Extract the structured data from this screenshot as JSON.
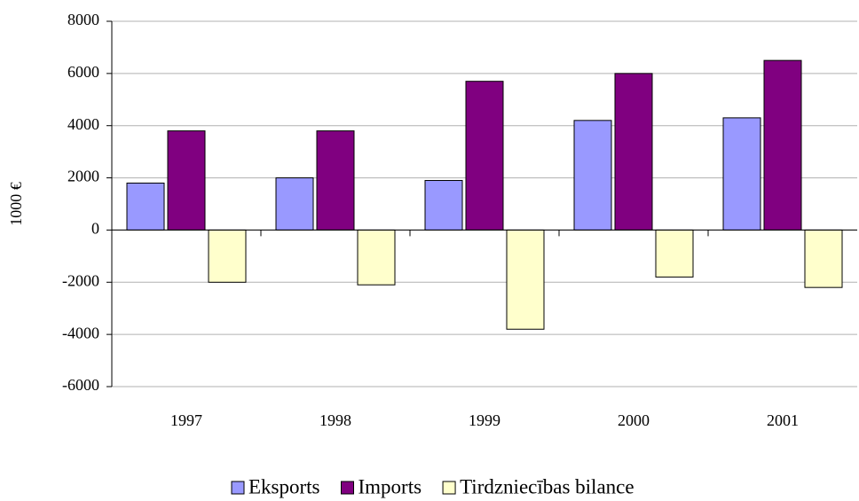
{
  "chart_data": {
    "type": "bar",
    "ylabel": "1000 €",
    "categories": [
      "1997",
      "1998",
      "1999",
      "2000",
      "2001"
    ],
    "series": [
      {
        "name": "Eksports",
        "color": "#9999ff",
        "values": [
          1800,
          2000,
          1900,
          4200,
          4300
        ]
      },
      {
        "name": "Imports",
        "color": "#800080",
        "values": [
          3800,
          3800,
          5700,
          6000,
          6500
        ]
      },
      {
        "name": "Tirdzniecības bilance",
        "color": "#ffffcc",
        "values": [
          -2000,
          -2100,
          -3800,
          -1800,
          -2200
        ]
      }
    ],
    "ylim": [
      -6000,
      8000
    ],
    "yticks": [
      -6000,
      -4000,
      -2000,
      0,
      2000,
      4000,
      6000,
      8000
    ],
    "grid": true,
    "legend": "bottom"
  }
}
